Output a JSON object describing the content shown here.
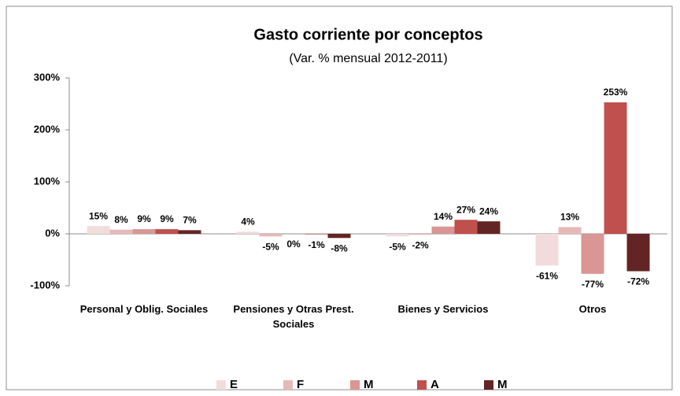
{
  "chart_data": {
    "type": "bar",
    "title": "Gasto corriente por conceptos",
    "subtitle": "(Var. %  mensual 2012-2011)",
    "categories": [
      "Personal y Oblig. Sociales",
      "Pensiones y Otras Prest. Sociales",
      "Bienes y Servicios",
      "Otros"
    ],
    "series": [
      {
        "name": "E",
        "color": "#f2dcdb",
        "values": [
          15,
          4,
          -5,
          -61
        ],
        "value_labels": [
          "15%",
          "4%",
          "-5%",
          "-61%"
        ]
      },
      {
        "name": "F",
        "color": "#e6b9b8",
        "values": [
          8,
          -5,
          -2,
          13
        ],
        "value_labels": [
          "8%",
          "-5%",
          "-2%",
          "13%"
        ]
      },
      {
        "name": "M",
        "color": "#d99694",
        "values": [
          9,
          0,
          14,
          -77
        ],
        "value_labels": [
          "9%",
          "0%",
          "14%",
          "-77%"
        ]
      },
      {
        "name": "A",
        "color": "#c0504d",
        "values": [
          9,
          -1,
          27,
          253
        ],
        "value_labels": [
          "9%",
          "-1%",
          "27%",
          "253%"
        ]
      },
      {
        "name": "M",
        "color": "#632523",
        "values": [
          7,
          -8,
          24,
          -72
        ],
        "value_labels": [
          "7%",
          "-8%",
          "24%",
          "-72%"
        ]
      }
    ],
    "ylim": [
      -100,
      300
    ],
    "yticks": [
      {
        "value": -100,
        "label": "-100%"
      },
      {
        "value": 0,
        "label": "0%"
      },
      {
        "value": 100,
        "label": "100%"
      },
      {
        "value": 200,
        "label": "200%"
      },
      {
        "value": 300,
        "label": "300%"
      }
    ],
    "grid": false,
    "legend": "bottom"
  }
}
